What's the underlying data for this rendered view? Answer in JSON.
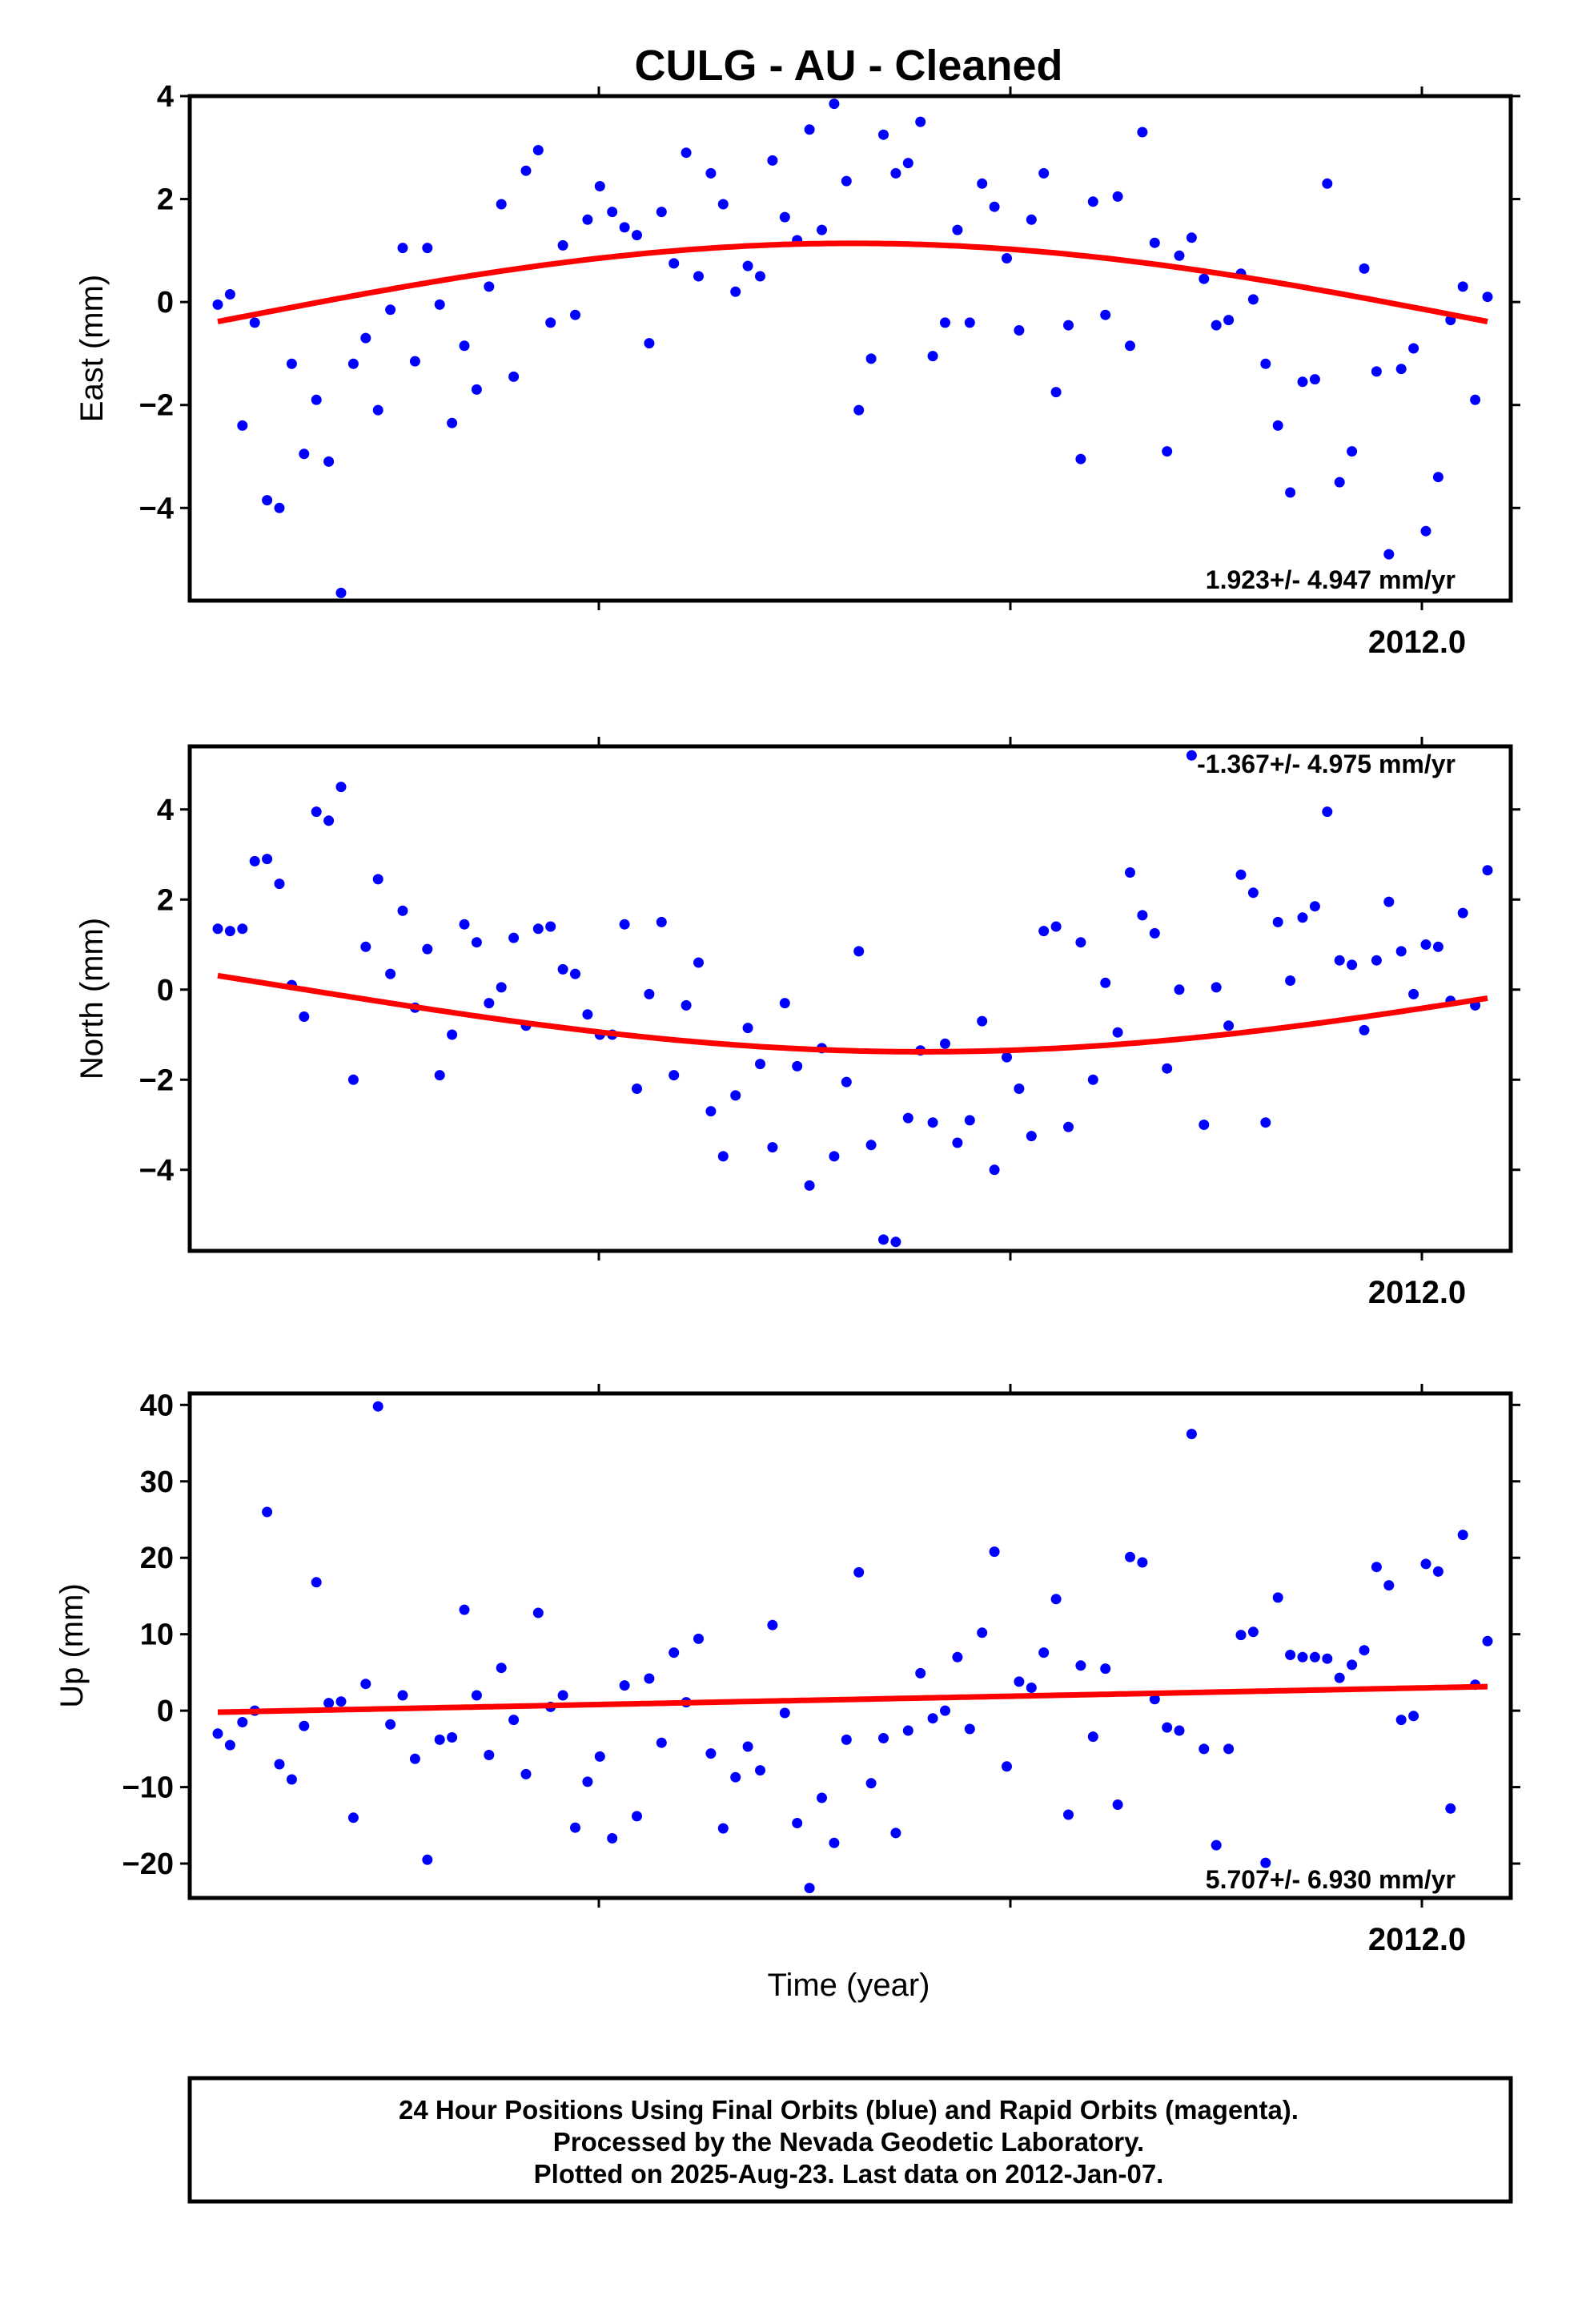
{
  "chart_data": {
    "type": "scatter",
    "title": "CULG  - AU - Cleaned",
    "xlabel": "Time (year)",
    "x_tick_label": "2012.0",
    "colors": {
      "points": "#0000ff",
      "fit": "#ff0000",
      "frame": "#000000"
    },
    "panels": [
      {
        "id": "east",
        "ylabel": "East (mm)",
        "ylim": [
          -5.8,
          4.0
        ],
        "yticks": [
          -4,
          -2,
          0,
          2,
          4
        ],
        "yticklabels": [
          "−4",
          "−2",
          "0",
          "2",
          "4"
        ],
        "rate_text": "1.923+/- 4.947 mm/yr",
        "rate_position": "bottom-right",
        "points_y": [
          -0.05,
          0.15,
          -2.4,
          -0.4,
          -3.85,
          -4.0,
          -1.2,
          -2.95,
          -1.9,
          -3.1,
          -5.65,
          -1.2,
          -0.7,
          -2.1,
          -0.15,
          1.05,
          -1.15,
          1.05,
          -0.05,
          -2.35,
          -0.85,
          -1.7,
          0.3,
          1.9,
          -1.45,
          2.55,
          2.95,
          -0.4,
          1.1,
          -0.25,
          1.6,
          2.25,
          1.75,
          1.45,
          1.3,
          -0.8,
          1.75,
          0.75,
          2.9,
          0.5,
          2.5,
          1.9,
          0.2,
          0.7,
          0.5,
          2.75,
          1.65,
          1.2,
          3.35,
          1.4,
          3.85,
          2.35,
          -2.1,
          -1.1,
          3.25,
          2.5,
          2.7,
          3.5,
          -1.05,
          -0.4,
          1.4,
          -0.4,
          2.3,
          1.85,
          0.85,
          -0.55,
          1.6,
          2.5,
          -1.75,
          -0.45,
          -3.05,
          1.95,
          -0.25,
          2.05,
          -0.85,
          3.3,
          1.15,
          -2.9,
          0.9,
          1.25,
          0.45,
          -0.45,
          -0.35,
          0.55,
          0.05,
          -1.2,
          -2.4,
          -3.7,
          -1.55,
          -1.5,
          2.3,
          -3.5,
          -2.9,
          0.65,
          -1.35,
          -4.9,
          -1.3,
          -0.9,
          -4.45,
          -3.4,
          -0.35,
          0.3,
          -1.9,
          0.1
        ],
        "fit": {
          "offset": -0.38,
          "amplitude": 1.52,
          "phase_deg": 90,
          "trend_total": 0.0
        }
      },
      {
        "id": "north",
        "ylabel": "North (mm)",
        "ylim": [
          -5.8,
          5.4
        ],
        "yticks": [
          -4,
          -2,
          0,
          2,
          4
        ],
        "yticklabels": [
          "−4",
          "−2",
          "0",
          "2",
          "4"
        ],
        "rate_text": "-1.367+/- 4.975 mm/yr",
        "rate_position": "top-right",
        "points_y": [
          1.35,
          1.3,
          1.35,
          2.85,
          2.9,
          2.35,
          0.1,
          -0.6,
          3.95,
          3.75,
          4.5,
          -2.0,
          0.95,
          2.45,
          0.35,
          1.75,
          -0.4,
          0.9,
          -1.9,
          -1.0,
          1.45,
          1.05,
          -0.3,
          0.05,
          1.15,
          -0.8,
          1.35,
          1.4,
          0.45,
          0.35,
          -0.55,
          -1.0,
          -1.0,
          1.45,
          -2.2,
          -0.1,
          1.5,
          -1.9,
          -0.35,
          0.6,
          -2.7,
          -3.7,
          -2.35,
          -0.85,
          -1.65,
          -3.5,
          -0.3,
          -1.7,
          -4.35,
          -1.3,
          -3.7,
          -2.05,
          0.85,
          -3.45,
          -5.55,
          -5.6,
          -2.85,
          -1.35,
          -2.95,
          -1.2,
          -3.4,
          -2.9,
          -0.7,
          -4.0,
          -1.5,
          -2.2,
          -3.25,
          1.3,
          1.4,
          -3.05,
          1.05,
          -2.0,
          0.15,
          -0.95,
          2.6,
          1.65,
          1.25,
          -1.75,
          0.0,
          5.2,
          -3.0,
          0.05,
          -0.8,
          2.55,
          2.15,
          -2.95,
          1.5,
          0.2,
          1.6,
          1.85,
          3.95,
          0.65,
          0.55,
          -0.9,
          0.65,
          1.95,
          0.85,
          -0.1,
          1.0,
          0.95,
          -0.25,
          1.7,
          -0.35,
          2.65
        ],
        "fit": {
          "offset": 0.06,
          "amplitude": -1.44,
          "phase_deg": 80,
          "trend_total": 0.0
        }
      },
      {
        "id": "up",
        "ylabel": "Up (mm)",
        "ylim": [
          -24.5,
          41.5
        ],
        "yticks": [
          -20,
          -10,
          0,
          10,
          20,
          30,
          40
        ],
        "yticklabels": [
          "−20",
          "−10",
          "0",
          "10",
          "20",
          "30",
          "40"
        ],
        "rate_text": "5.707+/- 6.930 mm/yr",
        "rate_position": "bottom-right",
        "points_y": [
          -3.0,
          -4.5,
          -1.5,
          0.0,
          26.0,
          -7.0,
          -9.0,
          -2.0,
          16.8,
          1.0,
          1.2,
          -14.0,
          3.5,
          39.8,
          -1.8,
          2.0,
          -6.3,
          -19.5,
          -3.8,
          -3.5,
          13.2,
          2.0,
          -5.8,
          5.6,
          -1.2,
          -8.3,
          12.8,
          0.5,
          2.0,
          -15.3,
          -9.3,
          -6.0,
          -16.7,
          3.3,
          -13.8,
          4.2,
          -4.2,
          7.6,
          1.1,
          9.4,
          -5.6,
          -15.4,
          -8.7,
          -4.7,
          -7.8,
          11.2,
          -0.3,
          -14.7,
          -23.2,
          -11.4,
          -17.3,
          -3.8,
          18.1,
          -9.5,
          -3.6,
          -16.0,
          -2.6,
          4.9,
          -1.0,
          0.0,
          7.0,
          -2.4,
          10.2,
          20.8,
          -7.3,
          3.8,
          3.0,
          7.6,
          14.6,
          -13.6,
          5.9,
          -3.4,
          5.5,
          -12.3,
          20.1,
          19.4,
          1.5,
          -2.2,
          -2.6,
          36.2,
          -5.0,
          -17.6,
          -5.0,
          9.9,
          10.3,
          -19.9,
          14.8,
          7.3,
          7.0,
          7.0,
          6.8,
          4.3,
          6.0,
          7.9,
          18.8,
          16.4,
          -1.2,
          -0.7,
          19.2,
          18.2,
          -12.8,
          23.0,
          3.4,
          9.1
        ],
        "fit": {
          "offset": -0.2,
          "amplitude": 0.0,
          "phase_deg": 0,
          "trend_total": 3.35
        }
      }
    ]
  },
  "footer": {
    "line1": "24 Hour Positions Using Final Orbits (blue) and Rapid Orbits (magenta).",
    "line2": "Processed by the Nevada Geodetic Laboratory.",
    "line3": "Plotted on 2025-Aug-23. Last data on 2012-Jan-07."
  }
}
